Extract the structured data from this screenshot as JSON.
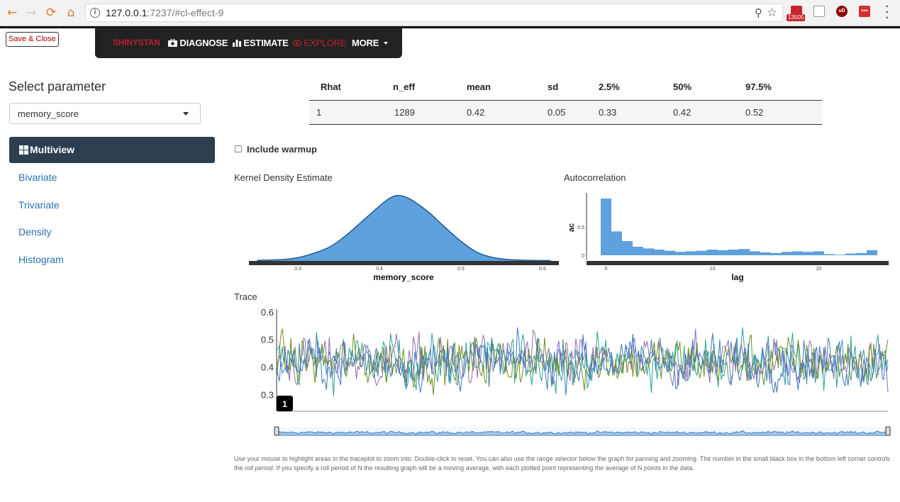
{
  "browser": {
    "url_host": "127.0.0.1",
    "url_rest": ":7237/#cl-effect-9",
    "mail_count": "13505"
  },
  "save_close": "Save & Close",
  "nav": {
    "brand": "SHINYSTAN",
    "diagnose": "DIAGNOSE",
    "estimate": "ESTIMATE",
    "explore": "EXPLORE",
    "more": "MORE"
  },
  "sidebar": {
    "select_label": "Select parameter",
    "selected_param": "memory_score",
    "active": "Multiview",
    "links": [
      "Bivariate",
      "Trivariate",
      "Density",
      "Histogram"
    ]
  },
  "summary_table": {
    "headers": [
      "Rhat",
      "n_eff",
      "mean",
      "sd",
      "2.5%",
      "50%",
      "97.5%"
    ],
    "row": [
      "1",
      "1289",
      "0.42",
      "0.05",
      "0.33",
      "0.42",
      "0.52"
    ]
  },
  "warmup_label": "Include warmup",
  "colors": {
    "density_fill": "#5ea1dc",
    "density_line": "#1f5a99",
    "acf_bar": "#5ea1dc",
    "nav_bg": "#222222",
    "sidebar_active": "#2c3e50",
    "chain_colors": [
      "#2aa198",
      "#8e6bb4",
      "#6b8e23",
      "#3a7bbf"
    ]
  },
  "density": {
    "title": "Kernel Density Estimate",
    "xlabel": "memory_score",
    "xticks": [
      "0.3",
      "0.4",
      "0.5",
      "0.6"
    ]
  },
  "acf": {
    "title": "Autocorrelation",
    "xlabel": "lag",
    "ylabel": "ac",
    "xticks": [
      "0",
      "10",
      "20"
    ],
    "yticks": [
      "0",
      "0.5"
    ]
  },
  "trace": {
    "title": "Trace",
    "yticks": [
      "0.6",
      "0.5",
      "0.4",
      "0.3"
    ],
    "roll_period": "1"
  },
  "chart_data": [
    {
      "type": "area",
      "title": "Kernel Density Estimate",
      "xlabel": "memory_score",
      "x": [
        0.25,
        0.28,
        0.3,
        0.32,
        0.34,
        0.36,
        0.38,
        0.4,
        0.41,
        0.42,
        0.43,
        0.44,
        0.46,
        0.48,
        0.5,
        0.52,
        0.54,
        0.56,
        0.58,
        0.61
      ],
      "y": [
        0.01,
        0.02,
        0.05,
        0.12,
        0.22,
        0.4,
        0.62,
        0.84,
        0.94,
        1.0,
        0.99,
        0.93,
        0.75,
        0.52,
        0.3,
        0.13,
        0.05,
        0.02,
        0.01,
        0.005
      ],
      "xlim": [
        0.24,
        0.62
      ]
    },
    {
      "type": "bar",
      "title": "Autocorrelation",
      "xlabel": "lag",
      "ylabel": "ac",
      "x": [
        0,
        1,
        2,
        3,
        4,
        5,
        6,
        7,
        8,
        9,
        10,
        11,
        12,
        13,
        14,
        15,
        16,
        17,
        18,
        19,
        20,
        21,
        22,
        23,
        24,
        25
      ],
      "values": [
        1.0,
        0.42,
        0.25,
        0.15,
        0.12,
        0.1,
        0.08,
        0.06,
        0.07,
        0.08,
        0.1,
        0.09,
        0.1,
        0.11,
        0.07,
        0.05,
        0.04,
        0.06,
        0.07,
        0.06,
        0.07,
        0.02,
        0.01,
        0.03,
        0.04,
        0.09
      ],
      "ylim": [
        -0.1,
        1.05
      ]
    },
    {
      "type": "line",
      "title": "Trace",
      "series_count": 4,
      "iterations": 1000,
      "ylim": [
        0.24,
        0.62
      ],
      "mean": 0.42,
      "sd": 0.05
    }
  ],
  "help_text": {
    "part1": "Use your mouse to highlight areas in the traceplot to zoom into. Double-click to reset. You can also use the range selector below the graph for panning and zooming. The number in the small black box in the bottom left corner controls the ",
    "em": "roll period",
    "part2": ". If you specify a roll period of N the resulting graph will be a moving average, with each plotted point representing the average of N points in the data."
  }
}
